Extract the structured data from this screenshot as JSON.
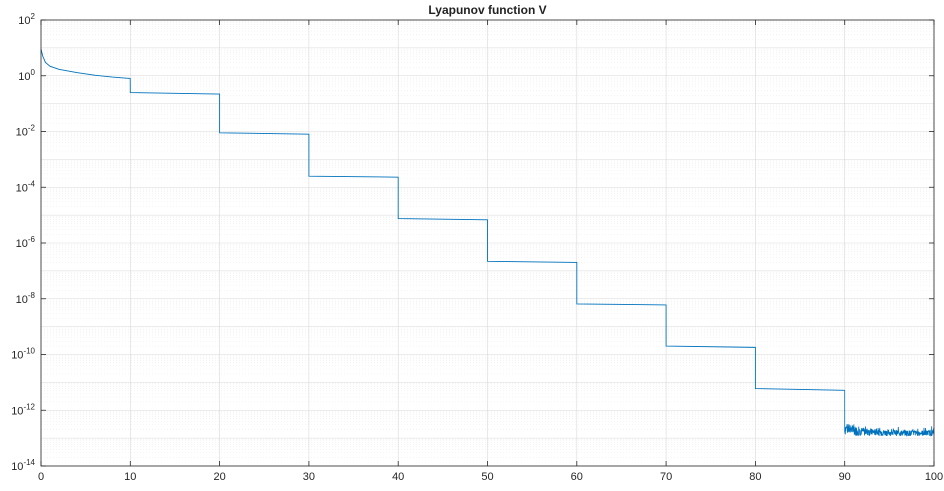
{
  "chart_data": {
    "type": "line",
    "title": "Lyapunov function V",
    "xlabel": "",
    "ylabel": "",
    "xlim": [
      0,
      100
    ],
    "ylim": [
      1e-14,
      100
    ],
    "yscale": "log",
    "grid": "major and minor",
    "x_ticks": [
      "0",
      "10",
      "20",
      "30",
      "40",
      "50",
      "60",
      "70",
      "80",
      "90",
      "100"
    ],
    "y_ticks": [
      {
        "base": "10",
        "exp": "2"
      },
      {
        "base": "10",
        "exp": "0"
      },
      {
        "base": "10",
        "exp": "-2"
      },
      {
        "base": "10",
        "exp": "-4"
      },
      {
        "base": "10",
        "exp": "-6"
      },
      {
        "base": "10",
        "exp": "-8"
      },
      {
        "base": "10",
        "exp": "-10"
      },
      {
        "base": "10",
        "exp": "-12"
      },
      {
        "base": "10",
        "exp": "-14"
      }
    ],
    "series": [
      {
        "color": "#0072bd",
        "x": [
          0,
          0.2,
          0.5,
          1,
          2,
          4,
          6,
          8,
          9.99,
          10,
          20,
          20,
          30,
          30,
          40,
          40,
          50,
          50,
          60,
          60,
          70,
          70,
          80,
          80,
          90
        ],
        "y": [
          9,
          5,
          3,
          2.2,
          1.7,
          1.3,
          1.05,
          0.9,
          0.8,
          0.25,
          0.22,
          0.009,
          0.008,
          0.00025,
          0.00023,
          7.5e-06,
          6.8e-06,
          2.2e-07,
          2e-07,
          6.5e-09,
          6e-09,
          2e-10,
          1.8e-10,
          6e-12,
          5.2e-12
        ]
      }
    ],
    "noise_segment": {
      "x_start": 90,
      "x_end": 100,
      "y_floor": 1.4e-13,
      "y_peak": 4.5e-13
    }
  }
}
